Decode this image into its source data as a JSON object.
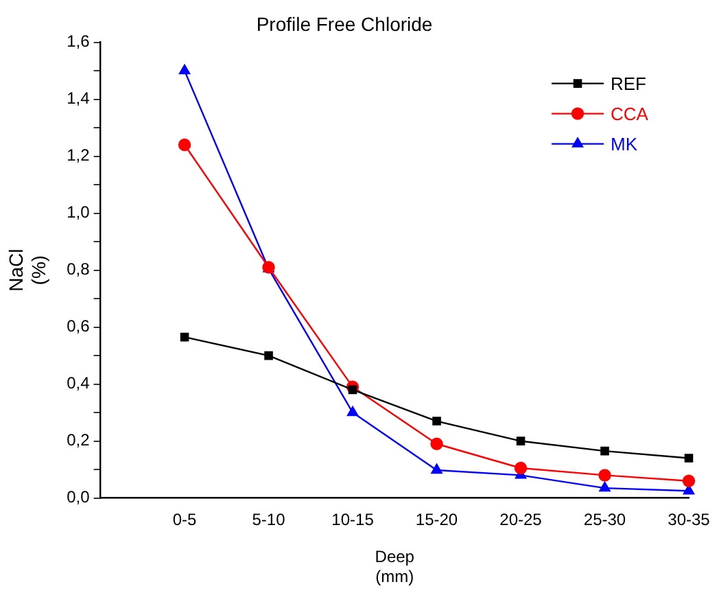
{
  "chart_data": {
    "type": "line",
    "title": "Profile Free Chloride",
    "xlabel": "Deep\n(mm)",
    "ylabel": "NaCl\n(%)",
    "categories": [
      null,
      "0-5",
      "5-10",
      "10-15",
      "15-20",
      "20-25",
      "25-30",
      "30-35"
    ],
    "series": [
      {
        "name": "REF",
        "color": "#000000",
        "marker": "square",
        "values": [
          null,
          0.565,
          0.5,
          0.38,
          0.27,
          0.2,
          0.165,
          0.14
        ]
      },
      {
        "name": "CCA",
        "color": "#ff0000",
        "marker": "circle",
        "values": [
          null,
          1.24,
          0.81,
          0.39,
          0.19,
          0.105,
          0.08,
          0.06
        ]
      },
      {
        "name": "MK",
        "color": "#0000ff",
        "marker": "triangle",
        "values": [
          null,
          1.5,
          0.805,
          0.3,
          0.098,
          0.08,
          0.035,
          0.025
        ]
      }
    ],
    "ylim": [
      0,
      1.6
    ],
    "yticks": [
      {
        "value": 0,
        "label": "0,0"
      },
      {
        "value": 0.1,
        "label": null
      },
      {
        "value": 0.2,
        "label": "0,2"
      },
      {
        "value": 0.3,
        "label": null
      },
      {
        "value": 0.4,
        "label": "0,4"
      },
      {
        "value": 0.5,
        "label": null
      },
      {
        "value": 0.6,
        "label": "0,6"
      },
      {
        "value": 0.7,
        "label": null
      },
      {
        "value": 0.8,
        "label": "0,8"
      },
      {
        "value": 0.9,
        "label": null
      },
      {
        "value": 1.0,
        "label": "1,0"
      },
      {
        "value": 1.1,
        "label": null
      },
      {
        "value": 1.2,
        "label": "1,2"
      },
      {
        "value": 1.3,
        "label": null
      },
      {
        "value": 1.4,
        "label": "1,4"
      },
      {
        "value": 1.5,
        "label": null
      },
      {
        "value": 1.6,
        "label": "1,6"
      }
    ],
    "grid": false,
    "legend": "top right",
    "line_style": "solid"
  }
}
